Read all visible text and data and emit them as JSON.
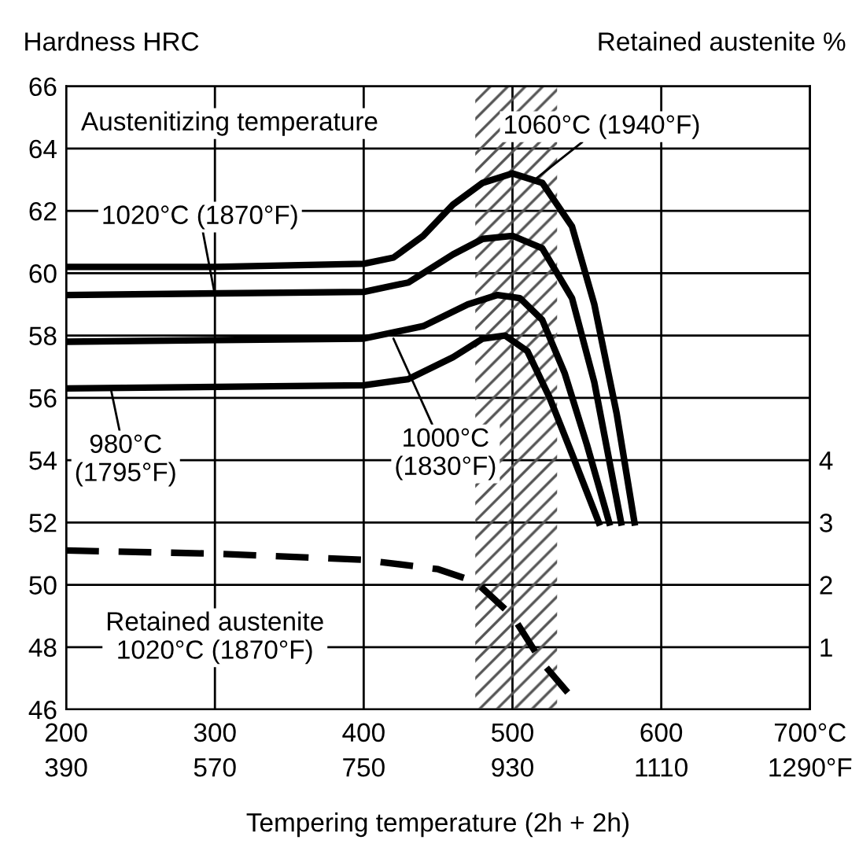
{
  "chart_data": {
    "type": "line",
    "xlabel": "Tempering temperature (2h + 2h)",
    "ylabel": "Hardness HRC",
    "y2label": "Retained austenite %",
    "xlim": [
      200,
      700
    ],
    "xticks": [
      200,
      300,
      400,
      500,
      600,
      {
        "value": 700,
        "label": "700°C"
      }
    ],
    "x2lim": [
      390,
      1290
    ],
    "x2ticks": [
      390,
      570,
      750,
      930,
      1110,
      {
        "value": 1290,
        "label": "1290°F"
      }
    ],
    "ylim": [
      46,
      66
    ],
    "yticks": [
      46,
      48,
      50,
      52,
      54,
      56,
      58,
      60,
      62,
      64,
      66
    ],
    "y2lim": [
      0,
      10
    ],
    "y2ticks": [
      1,
      2,
      3,
      4
    ],
    "grid": true,
    "marker": "none",
    "series": [
      {
        "color": "#000000",
        "line_style": "solid",
        "x": [
          200,
          300,
          400,
          420,
          440,
          460,
          480,
          500,
          520,
          540,
          555,
          570,
          582
        ],
        "values": [
          60.2,
          60.2,
          60.3,
          60.5,
          61.2,
          62.2,
          62.9,
          63.2,
          62.9,
          61.5,
          59,
          55.5,
          52
        ]
      },
      {
        "color": "#000000",
        "line_style": "solid",
        "x": [
          200,
          400,
          430,
          460,
          480,
          500,
          520,
          540,
          555,
          573
        ],
        "values": [
          59.3,
          59.4,
          59.7,
          60.6,
          61.1,
          61.2,
          60.8,
          59.2,
          56.5,
          52
        ]
      },
      {
        "color": "#000000",
        "line_style": "solid",
        "x": [
          200,
          400,
          440,
          470,
          490,
          505,
          520,
          535,
          550,
          565
        ],
        "values": [
          57.8,
          57.9,
          58.3,
          59,
          59.3,
          59.2,
          58.5,
          56.8,
          54.5,
          52
        ]
      },
      {
        "color": "#000000",
        "line_style": "solid",
        "x": [
          200,
          400,
          430,
          460,
          480,
          495,
          510,
          525,
          540,
          558
        ],
        "values": [
          56.3,
          56.4,
          56.6,
          57.3,
          57.9,
          58,
          57.5,
          56,
          54.2,
          52
        ]
      },
      {
        "color": "#000000",
        "line_style": "dashed",
        "axis": "y2",
        "x": [
          200,
          300,
          400,
          450,
          475,
          500,
          520,
          545
        ],
        "values": [
          2.55,
          2.5,
          2.4,
          2.25,
          2.05,
          1.5,
          0.75,
          0.05
        ]
      }
    ],
    "bands": [
      {
        "axis": "x",
        "from": 475,
        "to": 530,
        "color": "#555555"
      }
    ],
    "annotations": [
      "Austenitizing temperature",
      {
        "text": "1060°C (1940°F)",
        "x": 515,
        "y": 63.0
      },
      {
        "text": "1020°C (1870°F)",
        "x": 300,
        "y": 59.3
      },
      {
        "text": "1000°C\n(1830°F)",
        "x": 420,
        "y": 57.9
      },
      {
        "text": "980°C\n(1795°F)",
        "x": 230,
        "y": 56.3
      },
      {
        "text": "Retained austenite\n1020°C (1870°F)",
        "x": 300,
        "y": 51.0
      }
    ]
  }
}
